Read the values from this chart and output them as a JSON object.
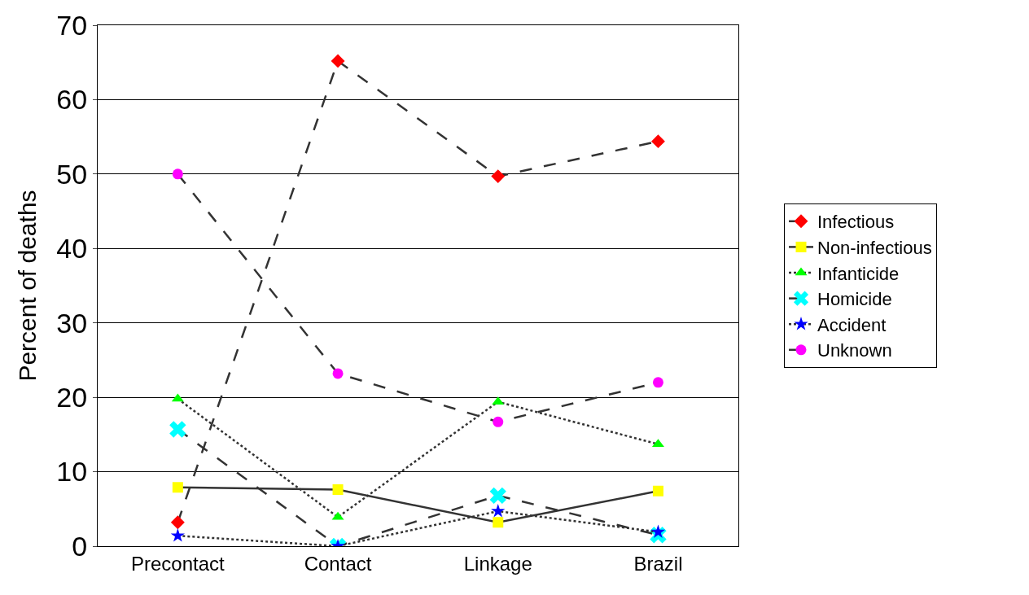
{
  "chart_data": {
    "type": "line",
    "ylabel": "Percent of deaths",
    "categories": [
      "Precontact",
      "Contact",
      "Linkage",
      "Brazil"
    ],
    "ylim": [
      0,
      70
    ],
    "yticks": [
      0,
      10,
      20,
      30,
      40,
      50,
      60,
      70
    ],
    "grid": "y",
    "legend": "right",
    "series": [
      {
        "name": "Infectious",
        "color": "#ff0000",
        "marker": "diamond",
        "line_style": "dashed",
        "values": [
          3.2,
          65.2,
          49.7,
          54.4
        ]
      },
      {
        "name": "Non-infectious",
        "color": "#ffff00",
        "marker": "square",
        "line_style": "solid",
        "values": [
          7.9,
          7.6,
          3.2,
          7.4
        ]
      },
      {
        "name": "Infanticide",
        "color": "#00ff00",
        "marker": "triangle",
        "line_style": "dotted",
        "values": [
          19.8,
          3.9,
          19.4,
          13.7
        ]
      },
      {
        "name": "Homicide",
        "color": "#00ffff",
        "marker": "cross",
        "line_style": "dashed",
        "values": [
          15.7,
          0,
          6.8,
          1.5
        ]
      },
      {
        "name": "Accident",
        "color": "#0000ff",
        "marker": "star",
        "line_style": "dotted",
        "values": [
          1.4,
          0,
          4.7,
          1.9
        ]
      },
      {
        "name": "Unknown",
        "color": "#ff00ff",
        "marker": "circle",
        "line_style": "dashed",
        "values": [
          50.0,
          23.2,
          16.7,
          22.0
        ]
      }
    ]
  }
}
